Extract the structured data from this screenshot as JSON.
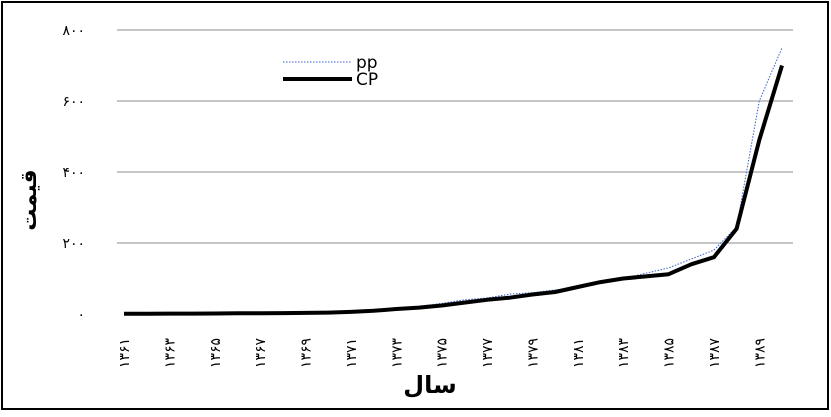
{
  "chart_data": {
    "type": "line",
    "title": "",
    "xlabel": "سال",
    "ylabel": "قیمت",
    "ylim": [
      0,
      800
    ],
    "yticks": [
      0,
      200,
      400,
      600,
      800
    ],
    "ytick_labels": [
      "۰",
      "۲۰۰",
      "۴۰۰",
      "۶۰۰",
      "۸۰۰"
    ],
    "x": [
      1361,
      1362,
      1363,
      1364,
      1365,
      1366,
      1367,
      1368,
      1369,
      1370,
      1371,
      1372,
      1373,
      1374,
      1375,
      1376,
      1377,
      1378,
      1379,
      1380,
      1381,
      1382,
      1383,
      1384,
      1385,
      1386,
      1387,
      1388,
      1389,
      1390
    ],
    "xtick_labels": [
      "۱۳۶۱",
      "۱۳۶۳",
      "۱۳۶۵",
      "۱۳۶۷",
      "۱۳۶۹",
      "۱۳۷۱",
      "۱۳۷۳",
      "۱۳۷۵",
      "۱۳۷۷",
      "۱۳۷۹",
      "۱۳۸۱",
      "۱۳۸۳",
      "۱۳۸۵",
      "۱۳۸۷",
      "۱۳۸۹"
    ],
    "xtick_values": [
      1361,
      1363,
      1365,
      1367,
      1369,
      1371,
      1373,
      1375,
      1377,
      1379,
      1381,
      1383,
      1385,
      1387,
      1389
    ],
    "grid": true,
    "legend_position": "top-left",
    "series": [
      {
        "name": "pp",
        "style": "dotted",
        "color": "#3a5fcd",
        "values": [
          1,
          1,
          1.5,
          2,
          2,
          2.5,
          3,
          3.5,
          4,
          5,
          7,
          10,
          16,
          22,
          30,
          40,
          45,
          56,
          60,
          68,
          72,
          90,
          100,
          115,
          130,
          155,
          180,
          245,
          600,
          750
        ]
      },
      {
        "name": "CP",
        "style": "solid",
        "color": "#000000",
        "values": [
          0.5,
          0.5,
          1,
          1,
          1.5,
          2,
          2,
          2.5,
          3,
          4,
          6,
          9,
          14,
          18,
          24,
          32,
          40,
          46,
          55,
          62,
          76,
          90,
          100,
          106,
          112,
          140,
          160,
          240,
          490,
          700
        ]
      }
    ]
  }
}
